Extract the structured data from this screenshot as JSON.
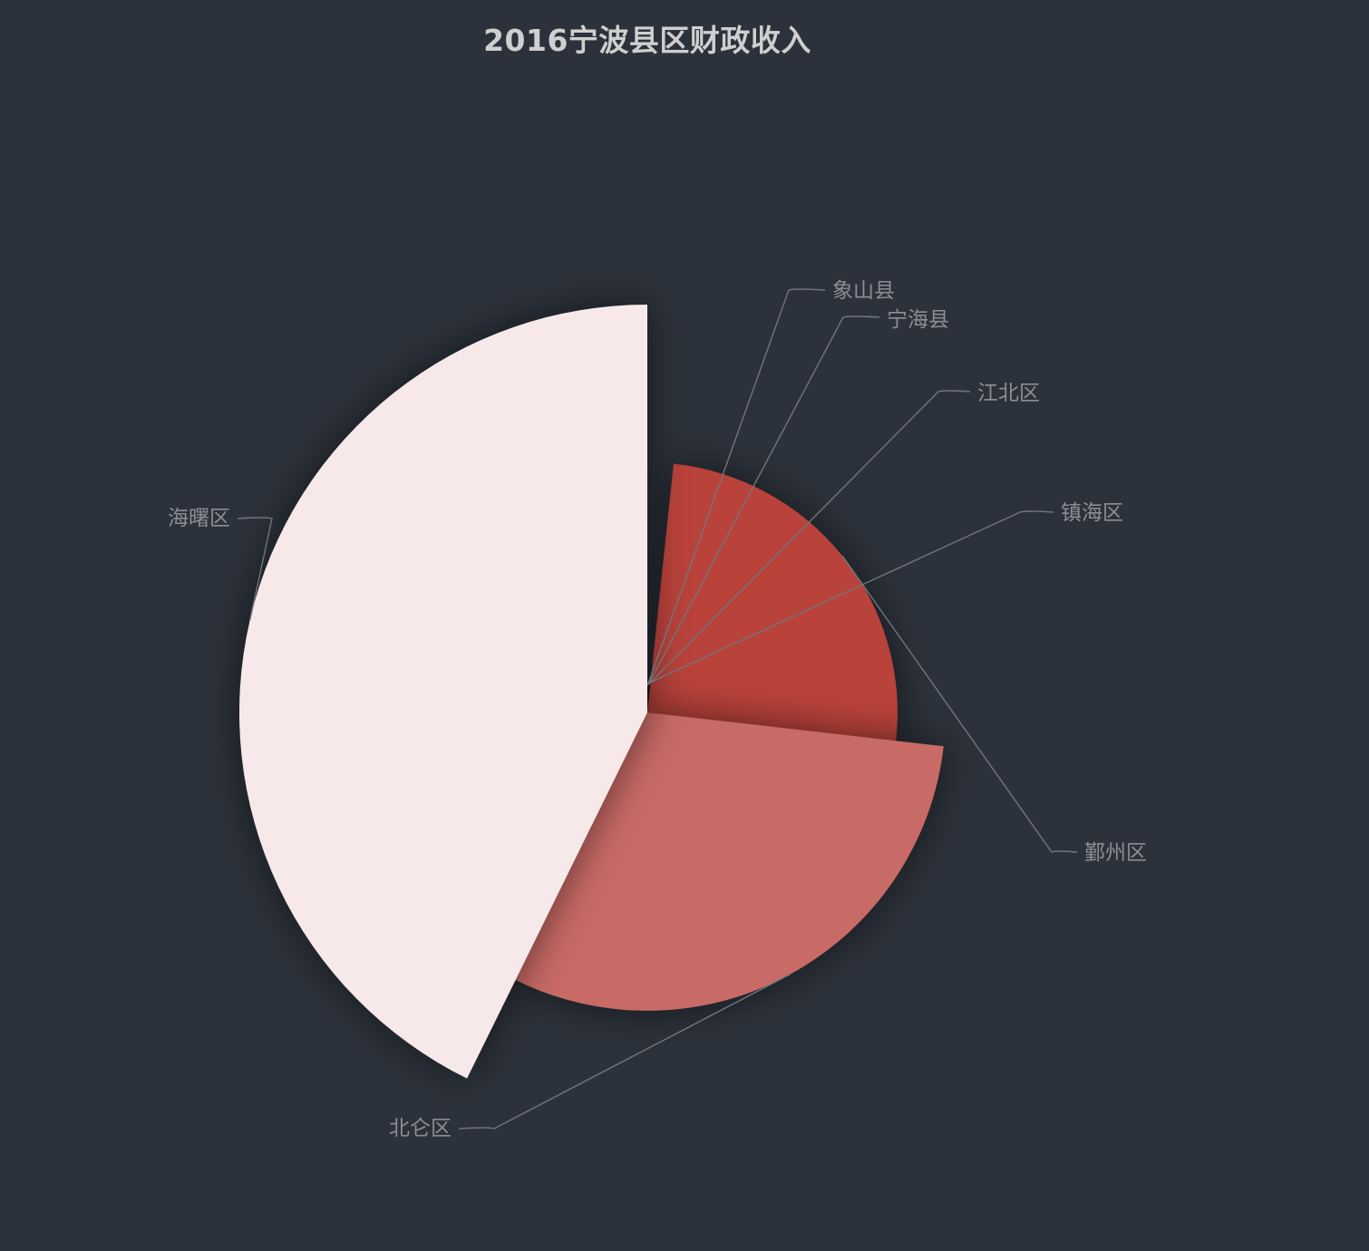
{
  "chart_data": {
    "type": "pie",
    "rose_type": "radius",
    "title": "2016宁波县区财政收入",
    "categories": [
      "象山县",
      "宁海县",
      "江北区",
      "镇海区",
      "鄞州区",
      "北仑区",
      "海曙区"
    ],
    "values": [
      3.0,
      3.5,
      4.5,
      6.5,
      263,
      319,
      447
    ],
    "unit": "",
    "legend": "none",
    "colors": {
      "background": "#2c323b",
      "title": "#cfcfcf",
      "label": "#8a8f96",
      "leader": "#71767d",
      "slices": [
        "#1a0a0a",
        "#220c0c",
        "#2a0e0e",
        "#140606",
        "#b9423a",
        "#c86a66",
        "#f7e9e9"
      ]
    }
  }
}
